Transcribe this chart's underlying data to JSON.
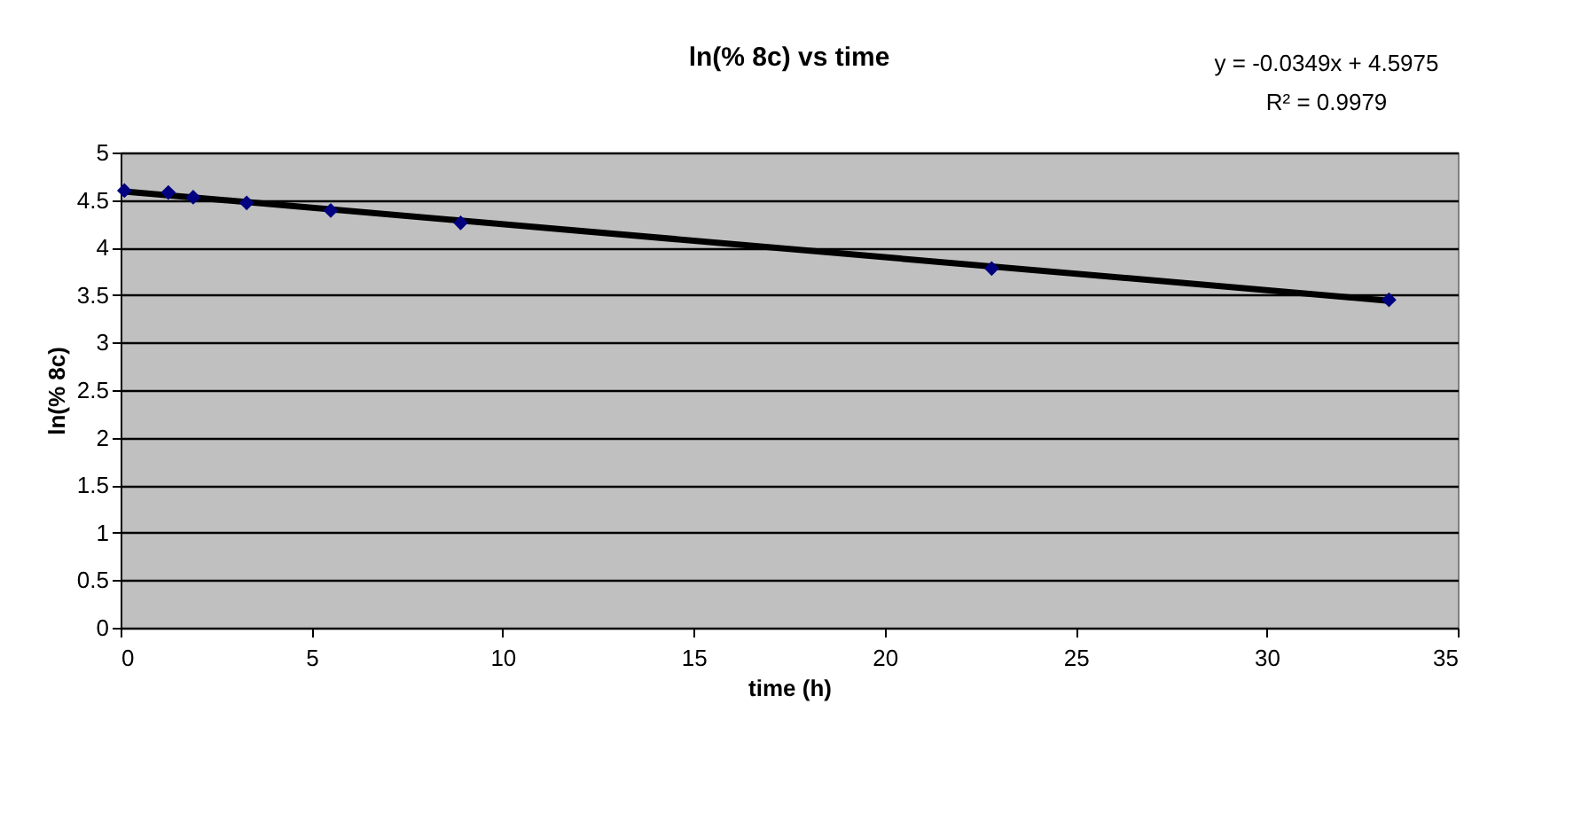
{
  "chart_data": {
    "type": "scatter",
    "title": "ln(% 8c) vs time",
    "xlabel": "time (h)",
    "ylabel": "ln(% 8c)",
    "annotations": [
      "y = -0.0349x + 4.5975",
      "R² = 0.9979"
    ],
    "series": [
      {
        "type": "scatter",
        "color": "#000080",
        "marker": "diamond",
        "x": [
          0.1,
          1.25,
          1.9,
          3.3,
          5.5,
          8.9,
          22.8,
          33.2
        ],
        "values": [
          4.6,
          4.58,
          4.53,
          4.47,
          4.39,
          4.26,
          3.78,
          3.45
        ]
      },
      {
        "type": "line",
        "color": "#000000",
        "line_style": "solid",
        "x": [
          0.1,
          33.2
        ],
        "values": [
          4.59,
          3.44
        ]
      }
    ],
    "xlim": [
      0,
      35
    ],
    "xticks": [
      0,
      5,
      10,
      15,
      20,
      25,
      30,
      35
    ],
    "ylim": [
      0,
      5
    ],
    "yticks": [
      0,
      0.5,
      1,
      1.5,
      2,
      2.5,
      3,
      3.5,
      4,
      4.5,
      5
    ],
    "grid": "y"
  }
}
